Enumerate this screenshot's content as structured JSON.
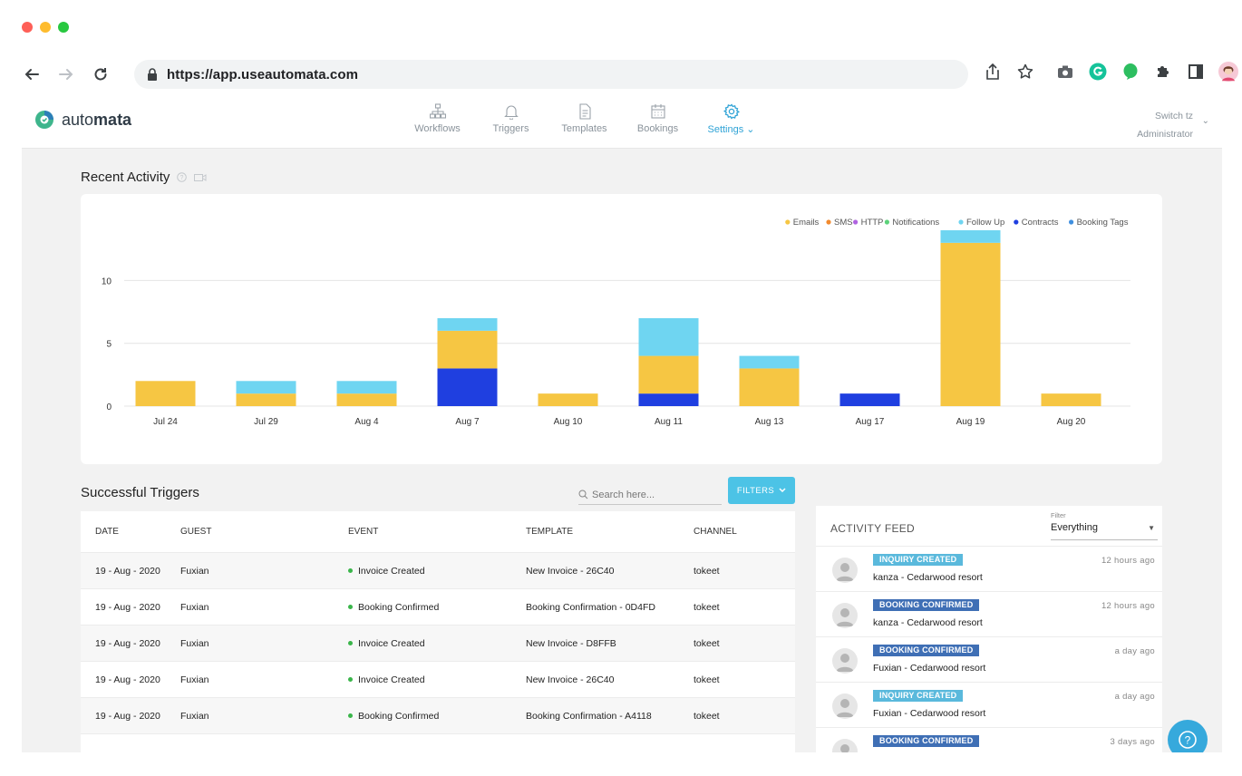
{
  "browser": {
    "url": "https://app.useautomata.com"
  },
  "app": {
    "logo_text_light": "auto",
    "logo_text_bold": "mata",
    "nav": [
      {
        "label": "Workflows",
        "icon": "sitemap-icon"
      },
      {
        "label": "Triggers",
        "icon": "bell-icon"
      },
      {
        "label": "Templates",
        "icon": "document-icon"
      },
      {
        "label": "Bookings",
        "icon": "calendar-icon"
      },
      {
        "label": "Settings",
        "icon": "gear-icon"
      }
    ],
    "user": {
      "switch_label": "Switch tz",
      "role": "Administrator"
    }
  },
  "recent_activity": {
    "title": "Recent Activity"
  },
  "chart_data": {
    "type": "bar",
    "stacked": true,
    "categories": [
      "Jul 24",
      "Jul 29",
      "Aug 4",
      "Aug 7",
      "Aug 10",
      "Aug 11",
      "Aug 13",
      "Aug 17",
      "Aug 19",
      "Aug 20"
    ],
    "series": [
      {
        "name": "Emails",
        "color": "#f6c643",
        "values": [
          2,
          1,
          1,
          3,
          1,
          3,
          3,
          0,
          13,
          1
        ]
      },
      {
        "name": "SMS",
        "color": "#f28a2e",
        "values": [
          0,
          0,
          0,
          0,
          0,
          0,
          0,
          0,
          0,
          0
        ]
      },
      {
        "name": "HTTP",
        "color": "#b063e0",
        "values": [
          0,
          0,
          0,
          0,
          0,
          0,
          0,
          0,
          0,
          0
        ]
      },
      {
        "name": "Notifications",
        "color": "#5cd27a",
        "values": [
          0,
          0,
          0,
          0,
          0,
          0,
          0,
          0,
          0,
          0
        ]
      },
      {
        "name": "Follow Up",
        "color": "#6fd5f1",
        "values": [
          0,
          1,
          1,
          1,
          0,
          3,
          1,
          0,
          1,
          0
        ]
      },
      {
        "name": "Contracts",
        "color": "#1f3fe0",
        "values": [
          0,
          0,
          0,
          3,
          0,
          1,
          0,
          1,
          0,
          0
        ]
      },
      {
        "name": "Booking Tags",
        "color": "#3f8fdf",
        "values": [
          0,
          0,
          0,
          0,
          0,
          0,
          0,
          0,
          0,
          0
        ]
      }
    ],
    "stack_order": [
      "Contracts",
      "Emails",
      "Follow Up"
    ],
    "ylim": [
      0,
      14
    ],
    "yticks": [
      "0",
      "5",
      "10"
    ],
    "legend_position": "top-right",
    "grid": true
  },
  "triggers": {
    "title": "Successful Triggers",
    "search_placeholder": "Search here...",
    "filters_label": "FILTERS",
    "columns": [
      "DATE",
      "GUEST",
      "EVENT",
      "TEMPLATE",
      "CHANNEL"
    ],
    "rows": [
      {
        "date": "19 - Aug - 2020",
        "guest": "Fuxian",
        "event": "Invoice Created",
        "template": "New Invoice - 26C40",
        "channel": "tokeet"
      },
      {
        "date": "19 - Aug - 2020",
        "guest": "Fuxian",
        "event": "Booking Confirmed",
        "template": "Booking Confirmation - 0D4FD",
        "channel": "tokeet"
      },
      {
        "date": "19 - Aug - 2020",
        "guest": "Fuxian",
        "event": "Invoice Created",
        "template": "New Invoice - D8FFB",
        "channel": "tokeet"
      },
      {
        "date": "19 - Aug - 2020",
        "guest": "Fuxian",
        "event": "Invoice Created",
        "template": "New Invoice - 26C40",
        "channel": "tokeet"
      },
      {
        "date": "19 - Aug - 2020",
        "guest": "Fuxian",
        "event": "Booking Confirmed",
        "template": "Booking Confirmation - A4118",
        "channel": "tokeet"
      }
    ]
  },
  "activity_feed": {
    "title": "ACTIVITY FEED",
    "filter_label": "Filter",
    "filter_value": "Everything",
    "items": [
      {
        "badge": "INQUIRY CREATED",
        "kind": "inquiry",
        "text": "kanza - Cedarwood resort",
        "time": "12 hours ago"
      },
      {
        "badge": "BOOKING CONFIRMED",
        "kind": "booking",
        "text": "kanza - Cedarwood resort",
        "time": "12 hours ago"
      },
      {
        "badge": "BOOKING CONFIRMED",
        "kind": "booking",
        "text": "Fuxian - Cedarwood resort",
        "time": "a day ago"
      },
      {
        "badge": "INQUIRY CREATED",
        "kind": "inquiry",
        "text": "Fuxian - Cedarwood resort",
        "time": "a day ago"
      },
      {
        "badge": "BOOKING CONFIRMED",
        "kind": "booking",
        "text": "",
        "time": "3 days ago"
      }
    ]
  },
  "help_icon": "help-question-icon"
}
